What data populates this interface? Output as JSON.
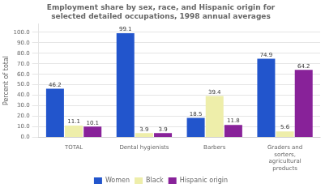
{
  "chart_data": {
    "type": "bar",
    "title": "Employment share by sex, race, and Hispanic origin for\nselected detailed occupations, 1998 annual averages",
    "categories": [
      "TOTAL",
      "Dental hygienists",
      "Barbers",
      "Graders and\nsorters,\nagricultural\nproducts"
    ],
    "series": [
      {
        "name": "Women",
        "color": "#2255cc",
        "values": [
          46.2,
          99.1,
          18.5,
          74.9
        ]
      },
      {
        "name": "Black",
        "color": "#eeeeaa",
        "values": [
          11.1,
          3.9,
          39.4,
          5.6
        ]
      },
      {
        "name": "Hispanic origin",
        "color": "#882299",
        "values": [
          10.1,
          3.9,
          11.8,
          64.2
        ]
      }
    ],
    "ylabel": "Percent of total",
    "ylim": [
      0,
      108
    ],
    "yticks": [
      {
        "value": 0,
        "label": "0.0"
      },
      {
        "value": 10,
        "label": "10.0"
      },
      {
        "value": 20,
        "label": "20.0"
      },
      {
        "value": 30,
        "label": "30.0"
      },
      {
        "value": 40,
        "label": "40.0"
      },
      {
        "value": 50,
        "label": "50.0"
      },
      {
        "value": 60,
        "label": "60.0"
      },
      {
        "value": 70,
        "label": "70.0"
      },
      {
        "value": 80,
        "label": "80.0"
      },
      {
        "value": 90,
        "label": "90.0"
      },
      {
        "value": 100,
        "label": "100.0"
      }
    ],
    "grid": true,
    "legend": "bottom",
    "data_labels": true
  }
}
